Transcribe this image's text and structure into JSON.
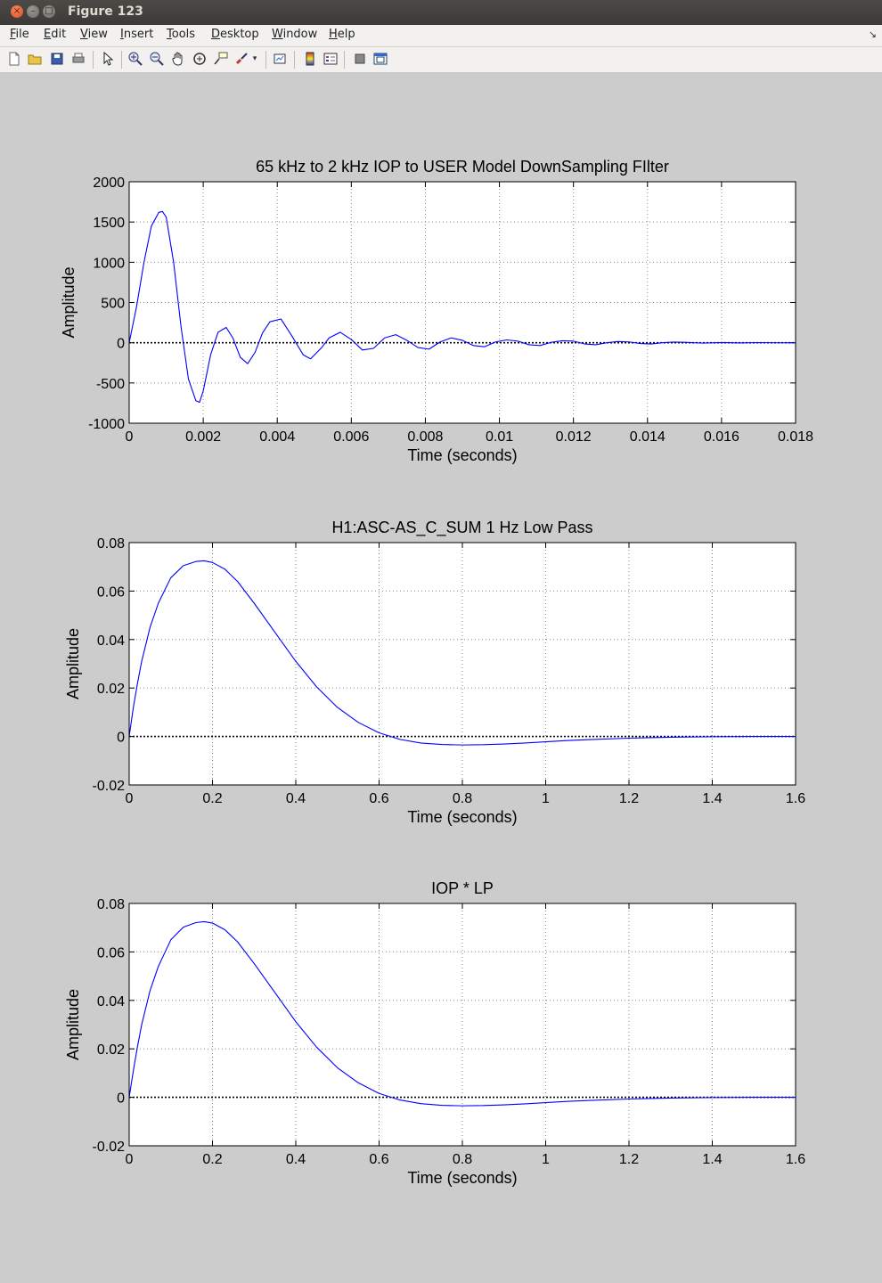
{
  "window": {
    "title": "Figure 123"
  },
  "menu": {
    "items": [
      "File",
      "Edit",
      "View",
      "Insert",
      "Tools",
      "Desktop",
      "Window",
      "Help"
    ]
  },
  "toolbar": {
    "icons": [
      "new-figure-icon",
      "open-file-icon",
      "save-icon",
      "print-icon",
      "edit-plot-arrow-icon",
      "zoom-in-icon",
      "zoom-out-icon",
      "pan-hand-icon",
      "rotate-3d-icon",
      "data-cursor-icon",
      "brush-icon",
      "brush-dropdown-icon",
      "link-plot-icon",
      "colorbar-icon",
      "legend-icon",
      "hide-plot-tools-icon",
      "show-plot-tools-icon"
    ]
  },
  "chart_data": [
    {
      "type": "line",
      "title": "65 kHz to 2 kHz IOP to USER Model DownSampling FIlter",
      "xlabel": "Time (seconds)",
      "ylabel": "Amplitude",
      "xlim": [
        0,
        0.018
      ],
      "ylim": [
        -1000,
        2000
      ],
      "xticks": [
        "0",
        "0.002",
        "0.004",
        "0.006",
        "0.008",
        "0.01",
        "0.012",
        "0.014",
        "0.016",
        "0.018"
      ],
      "yticks": [
        "2000",
        "1500",
        "1000",
        "500",
        "0",
        "-500",
        "-1000"
      ],
      "grid": true,
      "series": [
        {
          "color": "#0000ff",
          "x": [
            0,
            0.0002,
            0.0004,
            0.0006,
            0.0008,
            0.0009,
            0.001,
            0.0012,
            0.0014,
            0.0016,
            0.0018,
            0.0019,
            0.002,
            0.0022,
            0.0024,
            0.00262,
            0.0028,
            0.003,
            0.0032,
            0.0034,
            0.0036,
            0.0038,
            0.0041,
            0.0044,
            0.0047,
            0.0049,
            0.0052,
            0.0054,
            0.0057,
            0.006,
            0.0063,
            0.0066,
            0.0069,
            0.0072,
            0.0075,
            0.0078,
            0.0081,
            0.0084,
            0.0087,
            0.009,
            0.0093,
            0.0096,
            0.0099,
            0.0102,
            0.0105,
            0.0108,
            0.0111,
            0.0114,
            0.0117,
            0.012,
            0.0123,
            0.0126,
            0.0129,
            0.0132,
            0.0135,
            0.0138,
            0.0141,
            0.0144,
            0.0147,
            0.015,
            0.0155,
            0.016,
            0.0165,
            0.017,
            0.0175,
            0.018
          ],
          "y": [
            0,
            450,
            1000,
            1450,
            1620,
            1630,
            1560,
            1000,
            200,
            -450,
            -720,
            -740,
            -600,
            -150,
            130,
            190,
            60,
            -180,
            -260,
            -120,
            120,
            260,
            295,
            80,
            -150,
            -200,
            -60,
            60,
            130,
            40,
            -90,
            -70,
            60,
            100,
            30,
            -60,
            -80,
            10,
            60,
            30,
            -35,
            -50,
            10,
            35,
            20,
            -25,
            -35,
            5,
            25,
            20,
            -15,
            -25,
            0,
            15,
            10,
            -10,
            -15,
            0,
            8,
            5,
            -5,
            3,
            -3,
            2,
            -1,
            0
          ]
        }
      ]
    },
    {
      "type": "line",
      "title": "H1:ASC-AS_C_SUM 1 Hz Low Pass",
      "xlabel": "Time (seconds)",
      "ylabel": "Amplitude",
      "xlim": [
        0,
        1.6
      ],
      "ylim": [
        -0.02,
        0.08
      ],
      "xticks": [
        "0",
        "0.2",
        "0.4",
        "0.6",
        "0.8",
        "1",
        "1.2",
        "1.4",
        "1.6"
      ],
      "yticks": [
        "0.08",
        "0.06",
        "0.04",
        "0.02",
        "0",
        "-0.02"
      ],
      "grid": true,
      "series": [
        {
          "color": "#0000ff",
          "x": [
            0,
            0.01,
            0.02,
            0.03,
            0.05,
            0.07,
            0.1,
            0.13,
            0.16,
            0.18,
            0.2,
            0.23,
            0.26,
            0.3,
            0.35,
            0.4,
            0.45,
            0.5,
            0.55,
            0.6,
            0.65,
            0.7,
            0.75,
            0.8,
            0.85,
            0.9,
            0.95,
            1.0,
            1.05,
            1.1,
            1.2,
            1.3,
            1.4,
            1.5,
            1.6
          ],
          "y": [
            0,
            0.012,
            0.022,
            0.031,
            0.045,
            0.055,
            0.0655,
            0.0705,
            0.0722,
            0.0725,
            0.0718,
            0.069,
            0.064,
            0.055,
            0.043,
            0.031,
            0.0205,
            0.012,
            0.0058,
            0.0015,
            -0.0012,
            -0.0027,
            -0.0033,
            -0.0035,
            -0.0034,
            -0.0031,
            -0.0027,
            -0.0022,
            -0.0017,
            -0.0013,
            -0.0007,
            -0.0003,
            -0.0001,
            0,
            0
          ]
        }
      ]
    },
    {
      "type": "line",
      "title": "IOP * LP",
      "xlabel": "Time (seconds)",
      "ylabel": "Amplitude",
      "xlim": [
        0,
        1.6
      ],
      "ylim": [
        -0.02,
        0.08
      ],
      "xticks": [
        "0",
        "0.2",
        "0.4",
        "0.6",
        "0.8",
        "1",
        "1.2",
        "1.4",
        "1.6"
      ],
      "yticks": [
        "0.08",
        "0.06",
        "0.04",
        "0.02",
        "0",
        "-0.02"
      ],
      "grid": true,
      "series": [
        {
          "color": "#0000ff",
          "x": [
            0,
            0.01,
            0.02,
            0.03,
            0.05,
            0.07,
            0.1,
            0.13,
            0.16,
            0.18,
            0.2,
            0.23,
            0.26,
            0.3,
            0.35,
            0.4,
            0.45,
            0.5,
            0.55,
            0.6,
            0.65,
            0.7,
            0.75,
            0.8,
            0.85,
            0.9,
            0.95,
            1.0,
            1.05,
            1.1,
            1.2,
            1.3,
            1.4,
            1.5,
            1.6
          ],
          "y": [
            0,
            0.011,
            0.021,
            0.03,
            0.044,
            0.054,
            0.065,
            0.0702,
            0.0721,
            0.0725,
            0.0719,
            0.0691,
            0.0642,
            0.0552,
            0.0432,
            0.0312,
            0.0207,
            0.0122,
            0.006,
            0.0016,
            -0.0011,
            -0.0026,
            -0.0033,
            -0.0035,
            -0.0034,
            -0.0031,
            -0.0027,
            -0.0022,
            -0.0017,
            -0.0013,
            -0.0007,
            -0.0003,
            -0.0001,
            0,
            0
          ]
        }
      ]
    }
  ]
}
